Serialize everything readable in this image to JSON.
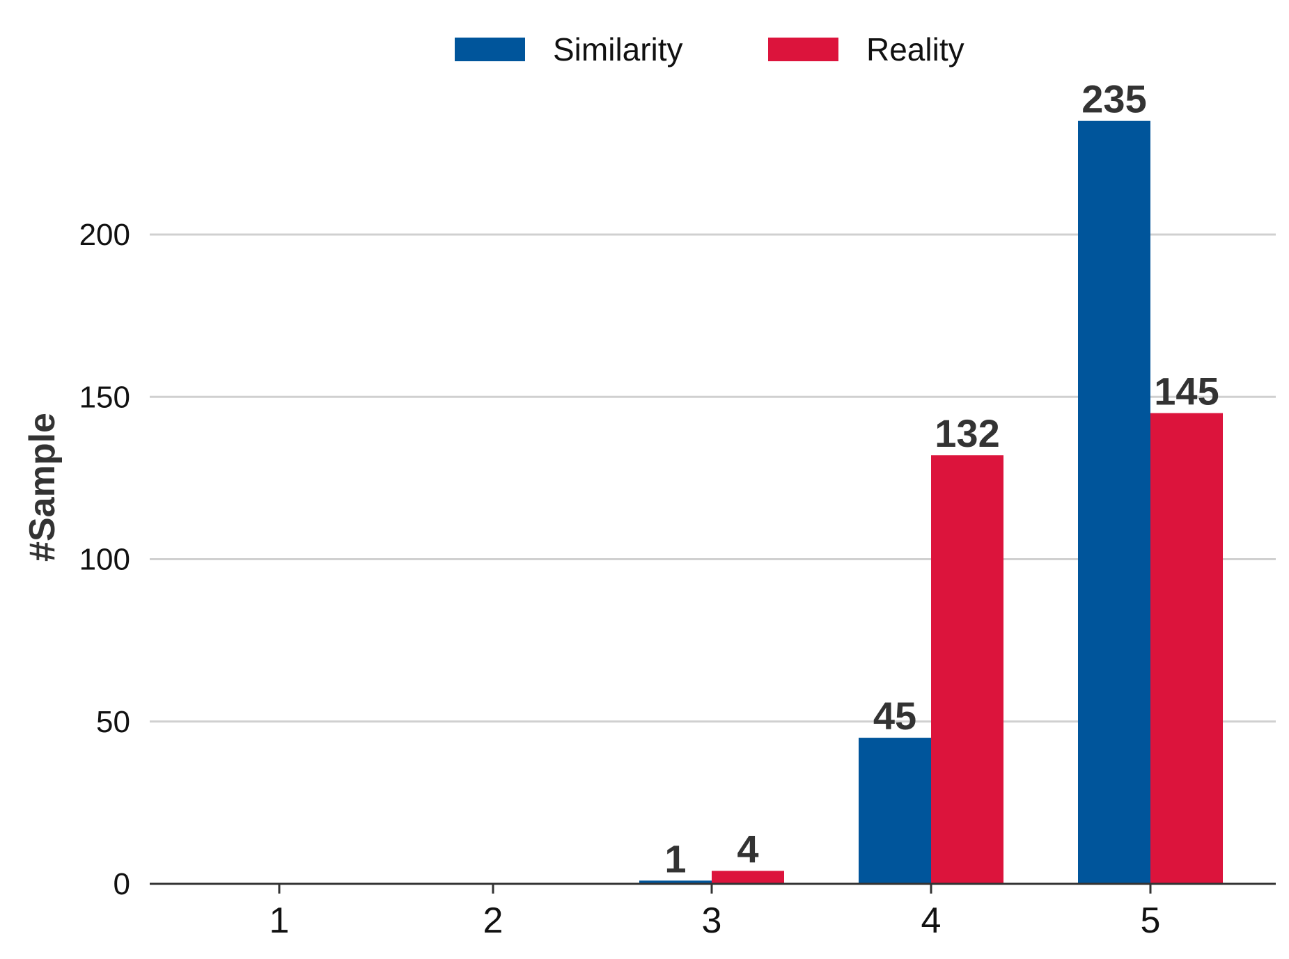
{
  "chart_data": {
    "type": "bar",
    "categories": [
      "1",
      "2",
      "3",
      "4",
      "5"
    ],
    "series": [
      {
        "name": "Similarity",
        "color": "#00559B",
        "values": [
          0,
          0,
          1,
          45,
          235
        ]
      },
      {
        "name": "Reality",
        "color": "#DC143C",
        "values": [
          0,
          0,
          4,
          132,
          145
        ]
      }
    ],
    "xlabel": "",
    "ylabel": "#Sample",
    "ylim": [
      0,
      250
    ],
    "yticks": [
      0,
      50,
      100,
      150,
      200
    ],
    "grid": true,
    "legend_position": "top-center",
    "data_labels_on_nonzero": true
  }
}
